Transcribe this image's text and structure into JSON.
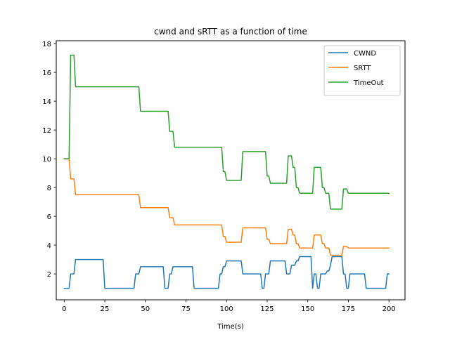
{
  "chart_data": {
    "type": "line",
    "title": "cwnd and sRTT as a function of time",
    "xlabel": "Time(s)",
    "ylabel": "",
    "xlim": [
      -4.9,
      209.9
    ],
    "ylim": [
      0.2,
      18.2
    ],
    "xticks": [
      0,
      25,
      50,
      75,
      100,
      125,
      150,
      175,
      200
    ],
    "yticks": [
      2,
      4,
      6,
      8,
      10,
      12,
      14,
      16,
      18
    ],
    "grid": false,
    "legend_position": "top-right",
    "series": [
      {
        "name": "CWND",
        "color": "#1f77b4",
        "points": [
          [
            0,
            1
          ],
          [
            3,
            1
          ],
          [
            4,
            2
          ],
          [
            6,
            2
          ],
          [
            7,
            3
          ],
          [
            24,
            3
          ],
          [
            25,
            1
          ],
          [
            43,
            1
          ],
          [
            44,
            2
          ],
          [
            46,
            2
          ],
          [
            47,
            2.5
          ],
          [
            61,
            2.5
          ],
          [
            62,
            1
          ],
          [
            64,
            1
          ],
          [
            65,
            2
          ],
          [
            66,
            2
          ],
          [
            67,
            2.5
          ],
          [
            79,
            2.5
          ],
          [
            80,
            1
          ],
          [
            95,
            1
          ],
          [
            96,
            2
          ],
          [
            97,
            2
          ],
          [
            98,
            2.5
          ],
          [
            99,
            2.5
          ],
          [
            100,
            2.9
          ],
          [
            109,
            2.9
          ],
          [
            110,
            2
          ],
          [
            121,
            2
          ],
          [
            122,
            1
          ],
          [
            123,
            1
          ],
          [
            124,
            2
          ],
          [
            126,
            2
          ],
          [
            127,
            2.9
          ],
          [
            136,
            2.9
          ],
          [
            137,
            2
          ],
          [
            139,
            2
          ],
          [
            140,
            2.6
          ],
          [
            142,
            2.6
          ],
          [
            143,
            2.9
          ],
          [
            144,
            2.9
          ],
          [
            145,
            3.2
          ],
          [
            152,
            3.2
          ],
          [
            153,
            1
          ],
          [
            154,
            2
          ],
          [
            155,
            2
          ],
          [
            156,
            1
          ],
          [
            157,
            1
          ],
          [
            158,
            2
          ],
          [
            161,
            2
          ],
          [
            162,
            2.2
          ],
          [
            163,
            2.2
          ],
          [
            164,
            2.6
          ],
          [
            165,
            3.2
          ],
          [
            171,
            3.2
          ],
          [
            172,
            2
          ],
          [
            173,
            2
          ],
          [
            174,
            1
          ],
          [
            175,
            1
          ],
          [
            176,
            2
          ],
          [
            185,
            2
          ],
          [
            186,
            1
          ],
          [
            198,
            1
          ],
          [
            199,
            2
          ],
          [
            200,
            2
          ]
        ]
      },
      {
        "name": "SRTT",
        "color": "#ff7f0e",
        "points": [
          [
            0,
            10
          ],
          [
            3,
            10
          ],
          [
            4,
            8.6
          ],
          [
            6,
            8.6
          ],
          [
            7,
            7.5
          ],
          [
            46,
            7.5
          ],
          [
            47,
            6.6
          ],
          [
            64,
            6.6
          ],
          [
            65,
            5.9
          ],
          [
            67,
            5.9
          ],
          [
            68,
            5.4
          ],
          [
            97,
            5.4
          ],
          [
            98,
            4.6
          ],
          [
            99,
            4.6
          ],
          [
            100,
            4.2
          ],
          [
            108,
            4.2
          ],
          [
            109,
            4.2
          ],
          [
            110,
            5.2
          ],
          [
            124,
            5.2
          ],
          [
            125,
            4.4
          ],
          [
            126,
            4.4
          ],
          [
            127,
            4.1
          ],
          [
            137,
            4.1
          ],
          [
            138,
            5.1
          ],
          [
            140,
            5.1
          ],
          [
            141,
            4.7
          ],
          [
            142,
            4.7
          ],
          [
            143,
            4.1
          ],
          [
            144,
            4.1
          ],
          [
            145,
            3.8
          ],
          [
            153,
            3.8
          ],
          [
            154,
            4.7
          ],
          [
            158,
            4.7
          ],
          [
            159,
            4.1
          ],
          [
            160,
            4.1
          ],
          [
            161,
            3.8
          ],
          [
            163,
            3.8
          ],
          [
            164,
            3.3
          ],
          [
            171,
            3.3
          ],
          [
            172,
            3.9
          ],
          [
            174,
            3.9
          ],
          [
            175,
            3.8
          ],
          [
            200,
            3.8
          ]
        ]
      },
      {
        "name": "TimeOut",
        "color": "#2ca02c",
        "points": [
          [
            0,
            10
          ],
          [
            3,
            10
          ],
          [
            4,
            17.2
          ],
          [
            6,
            17.2
          ],
          [
            7,
            15
          ],
          [
            46,
            15
          ],
          [
            47,
            13.3
          ],
          [
            64,
            13.3
          ],
          [
            65,
            11.9
          ],
          [
            67,
            11.9
          ],
          [
            68,
            10.8
          ],
          [
            97,
            10.8
          ],
          [
            98,
            9.1
          ],
          [
            99,
            9.1
          ],
          [
            100,
            8.5
          ],
          [
            108,
            8.5
          ],
          [
            109,
            8.5
          ],
          [
            110,
            10.5
          ],
          [
            124,
            10.5
          ],
          [
            125,
            8.8
          ],
          [
            126,
            8.8
          ],
          [
            127,
            8.3
          ],
          [
            137,
            8.3
          ],
          [
            138,
            10.2
          ],
          [
            140,
            10.2
          ],
          [
            141,
            9.4
          ],
          [
            142,
            9.4
          ],
          [
            143,
            8
          ],
          [
            144,
            8
          ],
          [
            145,
            7.6
          ],
          [
            153,
            7.6
          ],
          [
            154,
            9.4
          ],
          [
            158,
            9.4
          ],
          [
            159,
            8
          ],
          [
            160,
            8
          ],
          [
            161,
            7.6
          ],
          [
            163,
            7.6
          ],
          [
            164,
            6.5
          ],
          [
            171,
            6.5
          ],
          [
            172,
            7.9
          ],
          [
            174,
            7.9
          ],
          [
            175,
            7.6
          ],
          [
            200,
            7.6
          ]
        ]
      }
    ]
  }
}
